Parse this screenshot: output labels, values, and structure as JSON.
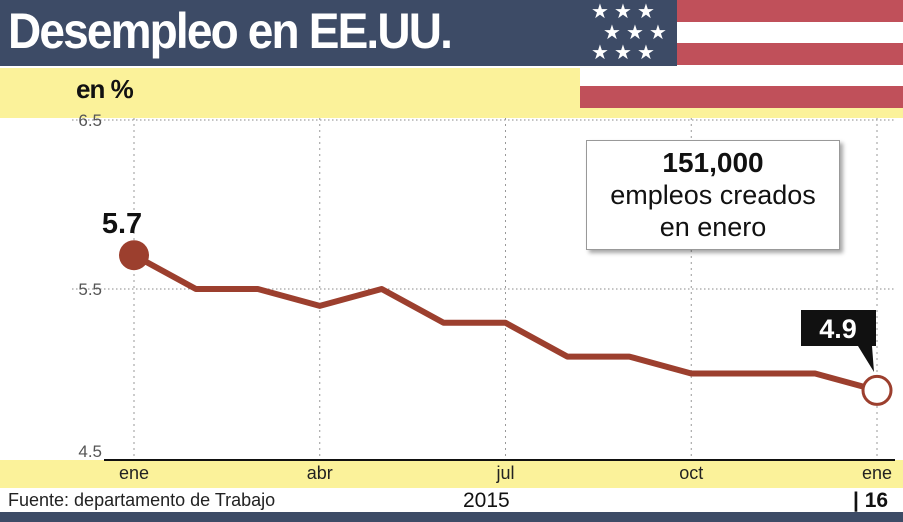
{
  "header": {
    "title": "Desempleo en EE.UU."
  },
  "colors": {
    "navy": "#3d4b66",
    "flag_red": "#c0505a",
    "band_yellow": "#fbf29a",
    "line": "#9c3f2e"
  },
  "chart_data": {
    "type": "line",
    "title": "Desempleo en EE.UU.",
    "ylabel": "en %",
    "ylim": [
      4.5,
      6.5
    ],
    "yticks": [
      "6.5",
      "5.5",
      "4.5"
    ],
    "xticks": [
      "ene",
      "abr",
      "jul",
      "oct",
      "ene"
    ],
    "x": [
      "2015-01",
      "2015-02",
      "2015-03",
      "2015-04",
      "2015-05",
      "2015-06",
      "2015-07",
      "2015-08",
      "2015-09",
      "2015-10",
      "2015-11",
      "2015-12",
      "2016-01"
    ],
    "values": [
      5.7,
      5.5,
      5.5,
      5.4,
      5.5,
      5.3,
      5.3,
      5.1,
      5.1,
      5.0,
      5.0,
      5.0,
      4.9
    ],
    "grid": true,
    "labels": {
      "first": "5.7",
      "last": "4.9"
    },
    "year_labels": [
      "2015",
      "16"
    ]
  },
  "callout": {
    "number": "151,000",
    "line1": "empleos creados",
    "line2": "en enero"
  },
  "footer": {
    "source": "Fuente: departamento de Trabajo"
  }
}
